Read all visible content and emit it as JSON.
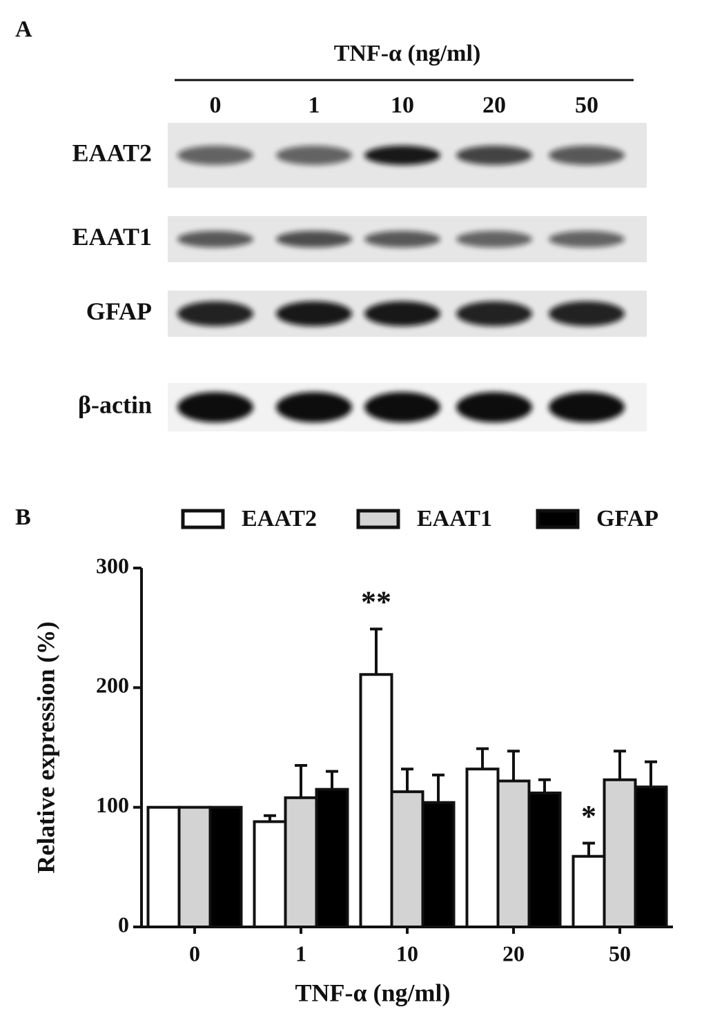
{
  "blot": {
    "label": "A",
    "treatment": "TNF-α (ng/ml)",
    "lanes": [
      "0",
      "1",
      "10",
      "20",
      "50"
    ],
    "rows": [
      "EAAT2",
      "EAAT1",
      "GFAP",
      "β-actin"
    ]
  },
  "chart_data": {
    "type": "bar",
    "label": "B",
    "x_label": "TNF-α (ng/ml)",
    "y_label": "Relative expression (%)",
    "categories": [
      "0",
      "1",
      "10",
      "20",
      "50"
    ],
    "series": [
      {
        "name": "EAAT2",
        "color": "#ffffff",
        "values": [
          100,
          88,
          211,
          132,
          59
        ],
        "errors": [
          null,
          5,
          38,
          17,
          11
        ],
        "annotations": [
          null,
          null,
          "**",
          null,
          "*"
        ]
      },
      {
        "name": "EAAT1",
        "color": "#d3d3d3",
        "values": [
          100,
          108,
          113,
          122,
          123
        ],
        "errors": [
          null,
          27,
          19,
          25,
          24
        ]
      },
      {
        "name": "GFAP",
        "color": "#000000",
        "values": [
          100,
          115,
          104,
          112,
          117
        ],
        "errors": [
          null,
          15,
          23,
          11,
          21
        ]
      }
    ],
    "ylim": [
      0,
      300
    ],
    "yticks": [
      0,
      100,
      200,
      300
    ]
  }
}
